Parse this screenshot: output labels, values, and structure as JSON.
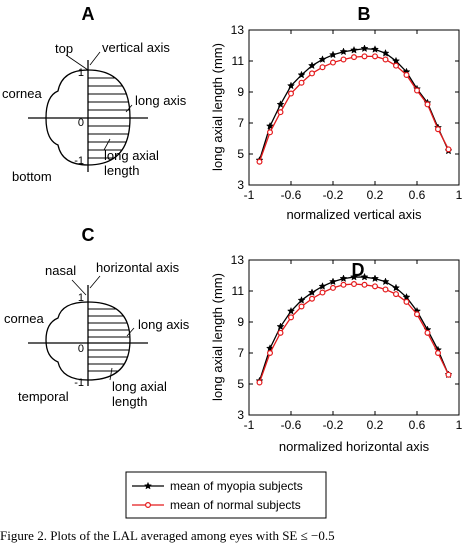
{
  "panel_labels": {
    "a": "A",
    "b": "B",
    "c": "C",
    "d": "D"
  },
  "diagram_a": {
    "top": "top",
    "vertical_axis": "vertical axis",
    "cornea": "cornea",
    "long_axis": "long axis",
    "bottom": "bottom",
    "long_axial_length": "long axial\nlength",
    "ticks": [
      "1",
      "0",
      "-1"
    ]
  },
  "diagram_c": {
    "top": "nasal",
    "vertical_axis": "horizontal axis",
    "cornea": "cornea",
    "long_axis": "long axis",
    "bottom": "temporal",
    "long_axial_length": "long axial\nlength",
    "ticks": [
      "1",
      "0",
      "-1"
    ]
  },
  "legend": {
    "entries": [
      {
        "name": "mean of myopia subjects",
        "color": "#000000",
        "marker": "star"
      },
      {
        "name": "mean of normal subjects",
        "color": "#e41a1c",
        "marker": "circle"
      }
    ]
  },
  "caption": "Figure 2.  Plots of the LAL averaged among eyes with SE ≤ −0.5",
  "chart_data": [
    {
      "panel": "B",
      "type": "line",
      "xlabel": "normalized vertical axis",
      "ylabel": "long axial length (mm)",
      "xlim": [
        -1,
        1
      ],
      "ylim": [
        3,
        13
      ],
      "xticks": [
        -1,
        -0.6,
        -0.2,
        0.2,
        0.6,
        1
      ],
      "yticks": [
        3,
        5,
        7,
        9,
        11,
        13
      ],
      "xtick_labels": [
        "-1",
        "-0.6",
        "-0.2",
        "0.2",
        "0.6",
        "1"
      ],
      "ytick_labels": [
        "3",
        "5",
        "7",
        "9",
        "11",
        "13"
      ],
      "x": [
        -0.9,
        -0.8,
        -0.7,
        -0.6,
        -0.5,
        -0.4,
        -0.3,
        -0.2,
        -0.1,
        0,
        0.1,
        0.2,
        0.3,
        0.4,
        0.5,
        0.6,
        0.7,
        0.8,
        0.9
      ],
      "series": [
        {
          "name": "mean of myopia subjects",
          "color": "#000000",
          "marker": "star",
          "values": [
            4.6,
            6.8,
            8.2,
            9.4,
            10.1,
            10.7,
            11.1,
            11.4,
            11.6,
            11.7,
            11.8,
            11.75,
            11.5,
            11.0,
            10.3,
            9.2,
            8.3,
            6.7,
            5.2
          ]
        },
        {
          "name": "mean of normal subjects",
          "color": "#e41a1c",
          "marker": "circle",
          "values": [
            4.5,
            6.4,
            7.7,
            8.9,
            9.6,
            10.2,
            10.6,
            10.9,
            11.1,
            11.25,
            11.3,
            11.3,
            11.1,
            10.7,
            10.1,
            9.1,
            8.2,
            6.6,
            5.3
          ]
        }
      ]
    },
    {
      "panel": "D",
      "type": "line",
      "xlabel": "normalized horizontal axis",
      "ylabel": "long axial length (mm)",
      "xlim": [
        -1,
        1
      ],
      "ylim": [
        3,
        13
      ],
      "xticks": [
        -1,
        -0.6,
        -0.2,
        0.2,
        0.6,
        1
      ],
      "yticks": [
        3,
        5,
        7,
        9,
        11,
        13
      ],
      "xtick_labels": [
        "-1",
        "-0.6",
        "-0.2",
        "0.2",
        "0.6",
        "1"
      ],
      "ytick_labels": [
        "3",
        "5",
        "7",
        "9",
        "11",
        "13"
      ],
      "x": [
        -0.9,
        -0.8,
        -0.7,
        -0.6,
        -0.5,
        -0.4,
        -0.3,
        -0.2,
        -0.1,
        0,
        0.1,
        0.2,
        0.3,
        0.4,
        0.5,
        0.6,
        0.7,
        0.8,
        0.9
      ],
      "series": [
        {
          "name": "mean of myopia subjects",
          "color": "#000000",
          "marker": "star",
          "values": [
            5.2,
            7.3,
            8.7,
            9.7,
            10.4,
            10.9,
            11.3,
            11.6,
            11.8,
            11.9,
            11.9,
            11.8,
            11.6,
            11.2,
            10.6,
            9.7,
            8.5,
            7.2,
            5.6
          ]
        },
        {
          "name": "mean of normal subjects",
          "color": "#e41a1c",
          "marker": "circle",
          "values": [
            5.1,
            7.0,
            8.3,
            9.3,
            10.0,
            10.5,
            10.9,
            11.2,
            11.4,
            11.45,
            11.4,
            11.3,
            11.1,
            10.8,
            10.3,
            9.5,
            8.3,
            7.0,
            5.6
          ]
        }
      ]
    }
  ]
}
